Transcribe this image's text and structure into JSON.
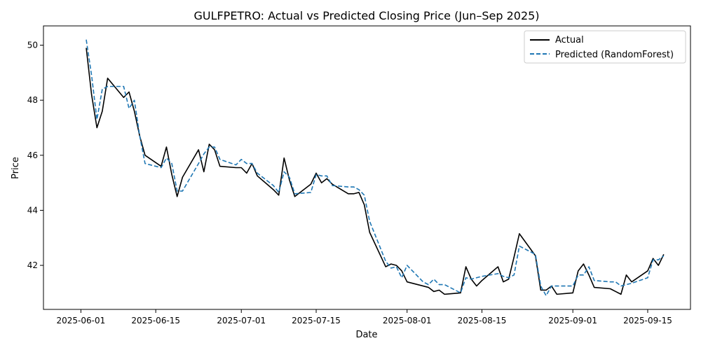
{
  "chart_data": {
    "type": "line",
    "title": "GULFPETRO: Actual vs Predicted Closing Price (Jun–Sep 2025)",
    "xlabel": "Date",
    "ylabel": "Price",
    "xlim": [
      "2025-05-25",
      "2025-09-23"
    ],
    "ylim": [
      40.4,
      50.7
    ],
    "x_ticks": [
      "2025-06-01",
      "2025-06-15",
      "2025-07-01",
      "2025-07-15",
      "2025-08-01",
      "2025-08-15",
      "2025-09-01",
      "2025-09-15"
    ],
    "y_ticks": [
      42,
      44,
      46,
      48,
      50
    ],
    "legend_position": "top-right",
    "grid": false,
    "series": [
      {
        "name": "Actual",
        "color": "#000000",
        "style": "solid",
        "x": [
          "2025-06-02",
          "2025-06-03",
          "2025-06-04",
          "2025-06-05",
          "2025-06-06",
          "2025-06-09",
          "2025-06-10",
          "2025-06-11",
          "2025-06-12",
          "2025-06-13",
          "2025-06-16",
          "2025-06-17",
          "2025-06-18",
          "2025-06-19",
          "2025-06-20",
          "2025-06-23",
          "2025-06-24",
          "2025-06-25",
          "2025-06-26",
          "2025-06-27",
          "2025-06-30",
          "2025-07-01",
          "2025-07-02",
          "2025-07-03",
          "2025-07-04",
          "2025-07-07",
          "2025-07-08",
          "2025-07-09",
          "2025-07-10",
          "2025-07-11",
          "2025-07-14",
          "2025-07-15",
          "2025-07-16",
          "2025-07-17",
          "2025-07-18",
          "2025-07-21",
          "2025-07-22",
          "2025-07-23",
          "2025-07-24",
          "2025-07-25",
          "2025-07-28",
          "2025-07-29",
          "2025-07-30",
          "2025-07-31",
          "2025-08-01",
          "2025-08-04",
          "2025-08-05",
          "2025-08-06",
          "2025-08-07",
          "2025-08-08",
          "2025-08-11",
          "2025-08-12",
          "2025-08-13",
          "2025-08-14",
          "2025-08-15",
          "2025-08-18",
          "2025-08-19",
          "2025-08-20",
          "2025-08-21",
          "2025-08-22",
          "2025-08-25",
          "2025-08-26",
          "2025-08-27",
          "2025-08-28",
          "2025-08-29",
          "2025-09-01",
          "2025-09-02",
          "2025-09-03",
          "2025-09-04",
          "2025-09-05",
          "2025-09-08",
          "2025-09-09",
          "2025-09-10",
          "2025-09-11",
          "2025-09-12",
          "2025-09-15",
          "2025-09-16",
          "2025-09-17",
          "2025-09-18"
        ],
        "values": [
          49.9,
          48.2,
          47.0,
          47.6,
          48.8,
          48.1,
          48.3,
          47.6,
          46.7,
          46.0,
          45.6,
          46.3,
          45.3,
          44.5,
          45.2,
          46.2,
          45.4,
          46.4,
          46.2,
          45.6,
          45.55,
          45.55,
          45.35,
          45.7,
          45.25,
          44.75,
          44.55,
          45.9,
          45.1,
          44.5,
          44.95,
          45.35,
          45.0,
          45.15,
          44.95,
          44.6,
          44.6,
          44.65,
          44.2,
          43.2,
          41.95,
          42.05,
          42.0,
          41.8,
          41.4,
          41.25,
          41.2,
          41.05,
          41.1,
          40.95,
          41.0,
          41.95,
          41.5,
          41.25,
          41.45,
          41.95,
          41.4,
          41.5,
          42.3,
          43.15,
          42.35,
          41.1,
          41.1,
          41.25,
          40.95,
          41.0,
          41.8,
          42.05,
          41.65,
          41.2,
          41.15,
          41.05,
          40.95,
          41.65,
          41.4,
          41.8,
          42.25,
          42.0,
          42.4
        ]
      },
      {
        "name": "Predicted (RandomForest)",
        "color": "#1f77b4",
        "style": "dashed",
        "x": [
          "2025-06-02",
          "2025-06-03",
          "2025-06-04",
          "2025-06-05",
          "2025-06-06",
          "2025-06-09",
          "2025-06-10",
          "2025-06-11",
          "2025-06-12",
          "2025-06-13",
          "2025-06-16",
          "2025-06-17",
          "2025-06-18",
          "2025-06-19",
          "2025-06-20",
          "2025-06-23",
          "2025-06-24",
          "2025-06-25",
          "2025-06-26",
          "2025-06-27",
          "2025-06-30",
          "2025-07-01",
          "2025-07-02",
          "2025-07-03",
          "2025-07-04",
          "2025-07-07",
          "2025-07-08",
          "2025-07-09",
          "2025-07-10",
          "2025-07-11",
          "2025-07-14",
          "2025-07-15",
          "2025-07-16",
          "2025-07-17",
          "2025-07-18",
          "2025-07-21",
          "2025-07-22",
          "2025-07-23",
          "2025-07-24",
          "2025-07-25",
          "2025-07-28",
          "2025-07-29",
          "2025-07-30",
          "2025-07-31",
          "2025-08-01",
          "2025-08-04",
          "2025-08-05",
          "2025-08-06",
          "2025-08-07",
          "2025-08-08",
          "2025-08-11",
          "2025-08-12",
          "2025-08-13",
          "2025-08-14",
          "2025-08-15",
          "2025-08-18",
          "2025-08-19",
          "2025-08-20",
          "2025-08-21",
          "2025-08-22",
          "2025-08-25",
          "2025-08-26",
          "2025-08-27",
          "2025-08-28",
          "2025-08-29",
          "2025-09-01",
          "2025-09-02",
          "2025-09-03",
          "2025-09-04",
          "2025-09-05",
          "2025-09-08",
          "2025-09-09",
          "2025-09-10",
          "2025-09-11",
          "2025-09-12",
          "2025-09-15",
          "2025-09-16",
          "2025-09-17",
          "2025-09-18"
        ],
        "values": [
          50.2,
          48.9,
          47.3,
          48.4,
          48.5,
          48.5,
          47.7,
          48.0,
          46.7,
          45.7,
          45.55,
          45.9,
          45.7,
          44.7,
          44.7,
          45.7,
          46.05,
          46.3,
          46.3,
          45.85,
          45.65,
          45.85,
          45.7,
          45.7,
          45.35,
          44.9,
          44.65,
          45.4,
          45.2,
          44.6,
          44.65,
          45.3,
          45.25,
          45.25,
          44.9,
          44.85,
          44.85,
          44.75,
          44.55,
          43.6,
          42.15,
          41.9,
          41.95,
          41.55,
          42.0,
          41.4,
          41.3,
          41.5,
          41.3,
          41.3,
          41.0,
          41.55,
          41.5,
          41.55,
          41.6,
          41.7,
          41.6,
          41.55,
          41.65,
          42.7,
          42.4,
          41.25,
          40.9,
          41.25,
          41.25,
          41.25,
          41.65,
          41.65,
          41.95,
          41.45,
          41.4,
          41.4,
          41.25,
          41.3,
          41.35,
          41.55,
          42.2,
          42.2,
          42.35
        ]
      }
    ]
  }
}
